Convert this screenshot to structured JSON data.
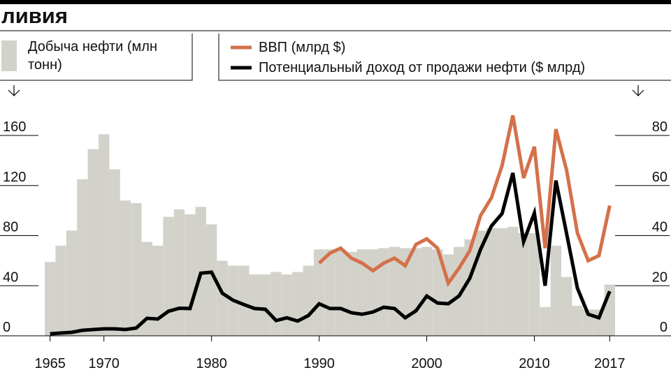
{
  "chart_data": {
    "type": "bar",
    "title": "ливия",
    "x": [
      1965,
      1966,
      1967,
      1968,
      1969,
      1970,
      1971,
      1972,
      1973,
      1974,
      1975,
      1976,
      1977,
      1978,
      1979,
      1980,
      1981,
      1982,
      1983,
      1984,
      1985,
      1986,
      1987,
      1988,
      1989,
      1990,
      1991,
      1992,
      1993,
      1994,
      1995,
      1996,
      1997,
      1998,
      1999,
      2000,
      2001,
      2002,
      2003,
      2004,
      2005,
      2006,
      2007,
      2008,
      2009,
      2010,
      2011,
      2012,
      2013,
      2014,
      2015,
      2016,
      2017
    ],
    "xlim": [
      1964.5,
      2017.5
    ],
    "xticks": [
      1965,
      1970,
      1980,
      1990,
      2000,
      2010,
      2017
    ],
    "ylim": [
      0,
      160
    ],
    "yticks": [
      0,
      40,
      80,
      120,
      160
    ],
    "y2lim": [
      0,
      80
    ],
    "y2ticks": [
      0,
      20,
      40,
      60,
      80
    ],
    "series": [
      {
        "name": "Добыча нефти (млн тонн)",
        "type": "bar",
        "color": "#d3d2ca",
        "values": [
          59,
          72,
          84,
          125,
          149,
          161,
          133,
          108,
          106,
          75,
          72,
          95,
          101,
          97,
          103,
          89,
          60,
          56,
          56,
          49,
          49,
          51,
          49,
          51,
          56,
          69,
          69,
          69,
          67,
          69,
          69,
          70,
          71,
          70,
          70,
          71,
          69,
          65,
          71,
          77,
          84,
          86,
          86,
          87,
          82,
          82,
          23,
          72,
          47,
          24,
          21,
          21,
          41
        ]
      },
      {
        "name": "ВВП (млрд $)",
        "type": "line",
        "axis": "y2",
        "color": "#d4714b",
        "values": [
          null,
          null,
          null,
          null,
          null,
          null,
          null,
          null,
          null,
          null,
          null,
          null,
          null,
          null,
          null,
          null,
          null,
          null,
          null,
          null,
          null,
          null,
          null,
          null,
          null,
          29,
          33,
          35,
          31,
          29,
          26,
          29,
          31,
          28,
          36.5,
          38.7,
          35,
          21,
          27,
          34,
          48,
          55,
          68,
          88,
          63,
          75.5,
          35,
          82.5,
          66,
          41,
          30,
          32,
          52
        ]
      },
      {
        "name": "Потенциальный доход от продажи нефти ($ млрд)",
        "type": "line",
        "axis": "y2",
        "color": "#000000",
        "values": [
          0.8,
          1.1,
          1.4,
          2.2,
          2.5,
          2.8,
          2.8,
          2.5,
          3.1,
          7,
          6.7,
          9.8,
          11,
          10.9,
          25,
          25.4,
          17,
          14.2,
          12.5,
          10.9,
          10.6,
          6.1,
          7.2,
          5.9,
          8.1,
          12.8,
          10.9,
          10.9,
          9.2,
          8.6,
          9.5,
          11.4,
          10.9,
          7.2,
          10,
          15.9,
          13.1,
          12.8,
          15.9,
          23,
          34.5,
          43.8,
          48.8,
          65,
          37.6,
          49,
          20,
          62,
          40.7,
          19,
          8.6,
          7.2,
          17.8
        ]
      }
    ]
  }
}
